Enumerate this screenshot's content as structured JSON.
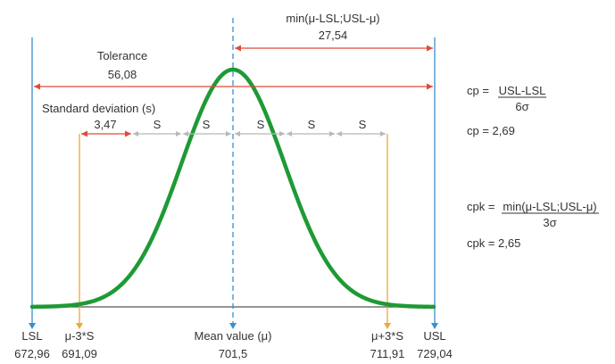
{
  "colors": {
    "curve": "#1e9a35",
    "limit_line": "#3a8fd0",
    "mean_line": "#3a8fd0",
    "sigma_line": "#f0a830",
    "red_arrow": "#e04a3a",
    "gray_arrow": "#b8b8b8",
    "text": "#333333"
  },
  "labels": {
    "min_title": "min(μ-LSL;USL-μ)",
    "min_value": "27,54",
    "tolerance_title": "Tolerance",
    "tolerance_value": "56,08",
    "stddev_title": "Standard deviation (s)",
    "stddev_value": "3,47",
    "s_marks": [
      "S",
      "S",
      "S",
      "S",
      "S"
    ]
  },
  "formulas": {
    "cp_lhs": "cp =",
    "cp_numerator": "USL-LSL",
    "cp_denominator": "6σ",
    "cp_result": "cp =  2,69",
    "cpk_lhs": "cpk =",
    "cpk_numerator": "min(μ-LSL;USL-μ)",
    "cpk_denominator": "3σ",
    "cpk_result": "cpk = 2,65"
  },
  "axis": {
    "names": [
      "LSL",
      "μ-3*S",
      "Mean value (μ)",
      "μ+3*S",
      "USL"
    ],
    "values": [
      "672,96",
      "691,09",
      "701,5",
      "711,91",
      "729,04"
    ]
  }
}
